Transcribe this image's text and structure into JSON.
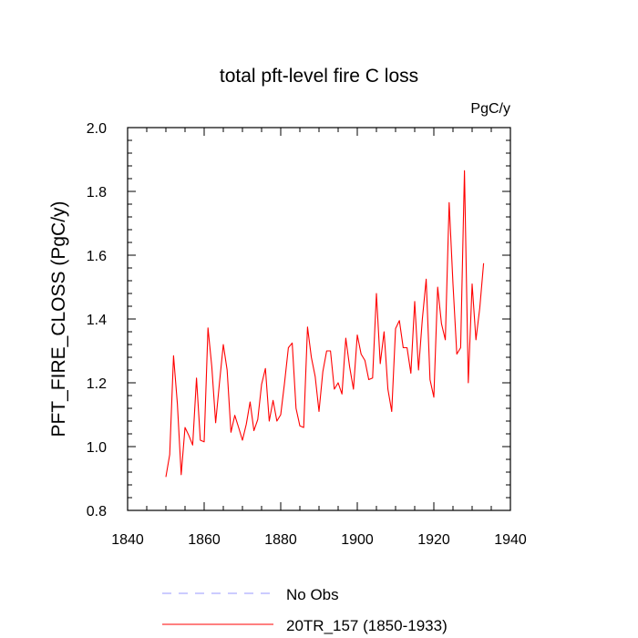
{
  "chart_data": {
    "type": "line",
    "title": "total pft-level fire C loss",
    "units_label": "PgC/y",
    "xlabel": "",
    "ylabel": "PFT_FIRE_CLOSS  (PgC/y)",
    "xlim": [
      1840,
      1940
    ],
    "ylim": [
      0.8,
      2.0
    ],
    "x_ticks": [
      1840,
      1860,
      1880,
      1900,
      1920,
      1940
    ],
    "y_ticks": [
      0.8,
      1.0,
      1.2,
      1.4,
      1.6,
      1.8,
      2.0
    ],
    "x_tick_labels": [
      "1840",
      "1860",
      "1880",
      "1900",
      "1920",
      "1940"
    ],
    "y_tick_labels": [
      "0.8",
      "1.0",
      "1.2",
      "1.4",
      "1.6",
      "1.8",
      "2.0"
    ],
    "grid": false,
    "legend_position": "bottom-center",
    "series": [
      {
        "name": "No Obs",
        "color": "#9999ff",
        "dash": true,
        "x": [],
        "values": []
      },
      {
        "name": "20TR_157 (1850-1933)",
        "color": "#ff0000",
        "dash": false,
        "x": [
          1850,
          1851,
          1852,
          1853,
          1854,
          1855,
          1856,
          1857,
          1858,
          1859,
          1860,
          1861,
          1862,
          1863,
          1864,
          1865,
          1866,
          1867,
          1868,
          1869,
          1870,
          1871,
          1872,
          1873,
          1874,
          1875,
          1876,
          1877,
          1878,
          1879,
          1880,
          1881,
          1882,
          1883,
          1884,
          1885,
          1886,
          1887,
          1888,
          1889,
          1890,
          1891,
          1892,
          1893,
          1894,
          1895,
          1896,
          1897,
          1898,
          1899,
          1900,
          1901,
          1902,
          1903,
          1904,
          1905,
          1906,
          1907,
          1908,
          1909,
          1910,
          1911,
          1912,
          1913,
          1914,
          1915,
          1916,
          1917,
          1918,
          1919,
          1920,
          1921,
          1922,
          1923,
          1924,
          1925,
          1926,
          1927,
          1928,
          1929,
          1930,
          1931,
          1932,
          1933
        ],
        "values": [
          0.905,
          0.975,
          1.285,
          1.135,
          0.912,
          1.06,
          1.035,
          1.005,
          1.215,
          1.02,
          1.015,
          1.372,
          1.25,
          1.075,
          1.2,
          1.32,
          1.24,
          1.045,
          1.098,
          1.06,
          1.02,
          1.07,
          1.14,
          1.05,
          1.085,
          1.195,
          1.245,
          1.08,
          1.145,
          1.08,
          1.1,
          1.2,
          1.31,
          1.325,
          1.12,
          1.065,
          1.06,
          1.375,
          1.28,
          1.22,
          1.11,
          1.235,
          1.3,
          1.3,
          1.18,
          1.2,
          1.165,
          1.34,
          1.25,
          1.18,
          1.35,
          1.29,
          1.27,
          1.21,
          1.215,
          1.48,
          1.26,
          1.36,
          1.18,
          1.11,
          1.37,
          1.395,
          1.31,
          1.31,
          1.23,
          1.455,
          1.24,
          1.4,
          1.525,
          1.21,
          1.155,
          1.5,
          1.385,
          1.335,
          1.765,
          1.51,
          1.29,
          1.31,
          1.865,
          1.2,
          1.51,
          1.335,
          1.435,
          1.575
        ]
      }
    ]
  }
}
